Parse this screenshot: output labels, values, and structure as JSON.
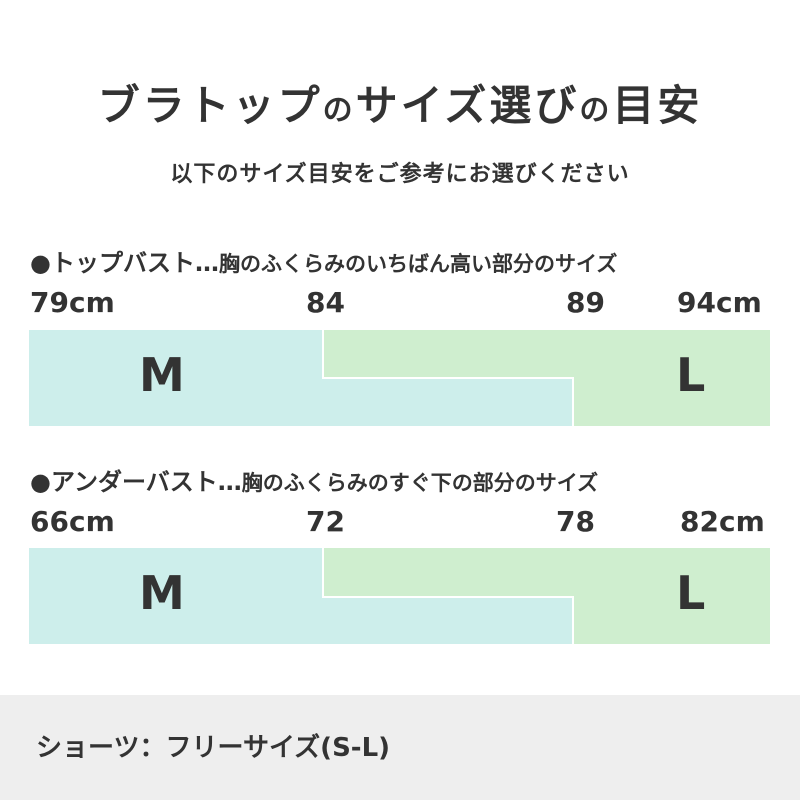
{
  "title_main_1": "ブラトップ",
  "title_particle": "の",
  "title_main_2": "サイズ選び",
  "title_particle_2": "の",
  "title_main_3": "目安",
  "subtitle": "以下のサイズ目安をご参考にお選びください",
  "colors": {
    "m_color": "#cdeeeb",
    "l_color": "#cfeecf",
    "footer_bg": "#eeeeee"
  },
  "sections": [
    {
      "heading": "●トップバスト…",
      "description": "胸のふくらみのいちばん高い部分のサイズ",
      "ticks": [
        "79cm",
        "84",
        "89",
        "94cm"
      ],
      "size_m": "M",
      "size_l": "L"
    },
    {
      "heading": "●アンダーバスト…",
      "description": "胸のふくらみのすぐ下の部分のサイズ",
      "ticks": [
        "66cm",
        "72",
        "78",
        "82cm"
      ],
      "size_m": "M",
      "size_l": "L"
    }
  ],
  "footer": {
    "text": "ショーツ：フリーサイズ(S-L)"
  }
}
